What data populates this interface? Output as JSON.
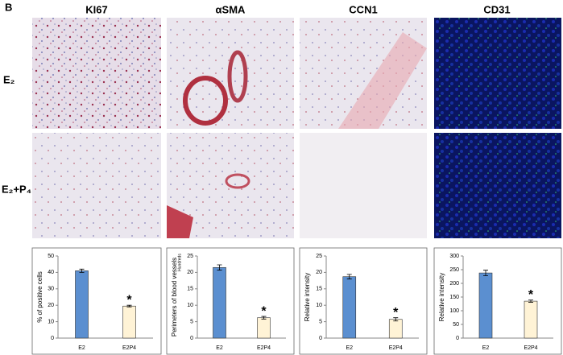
{
  "panel_label": "B",
  "columns": [
    "KI67",
    "αSMA",
    "CCN1",
    "CD31"
  ],
  "rows": [
    "E₂",
    "E₂+P₄"
  ],
  "chart_data": [
    {
      "type": "bar",
      "ylabel": "% of positive cells",
      "categories": [
        "E2",
        "E2P4"
      ],
      "values": [
        41,
        19.5
      ],
      "errors": [
        1,
        0.5
      ],
      "colors": [
        "#5b8fd0",
        "#fff3d6"
      ],
      "ylim": [
        0,
        50
      ],
      "yticks": [
        0,
        10,
        20,
        30,
        40,
        50
      ],
      "annotation": "*"
    },
    {
      "type": "bar",
      "ylabel": "Perimeters of blood vessels",
      "unit_label": "Hundreds",
      "categories": [
        "E2",
        "E2P4"
      ],
      "values": [
        21.5,
        6.2
      ],
      "errors": [
        0.8,
        0.4
      ],
      "colors": [
        "#5b8fd0",
        "#fff3d6"
      ],
      "ylim": [
        0,
        25
      ],
      "yticks": [
        0,
        5,
        10,
        15,
        20,
        25
      ],
      "annotation": "*"
    },
    {
      "type": "bar",
      "ylabel": "Relative intensity",
      "categories": [
        "E2",
        "E2P4"
      ],
      "values": [
        18.7,
        5.7
      ],
      "errors": [
        0.7,
        0.5
      ],
      "colors": [
        "#5b8fd0",
        "#fff3d6"
      ],
      "ylim": [
        0,
        25
      ],
      "yticks": [
        0,
        5,
        10,
        15,
        20,
        25
      ],
      "annotation": "*"
    },
    {
      "type": "bar",
      "ylabel": "Relative intensity",
      "categories": [
        "E2",
        "E2P4"
      ],
      "values": [
        238,
        135
      ],
      "errors": [
        10,
        4
      ],
      "colors": [
        "#5b8fd0",
        "#fff3d6"
      ],
      "ylim": [
        0,
        300
      ],
      "yticks": [
        0,
        50,
        100,
        150,
        200,
        250,
        300
      ],
      "annotation": "*"
    }
  ]
}
